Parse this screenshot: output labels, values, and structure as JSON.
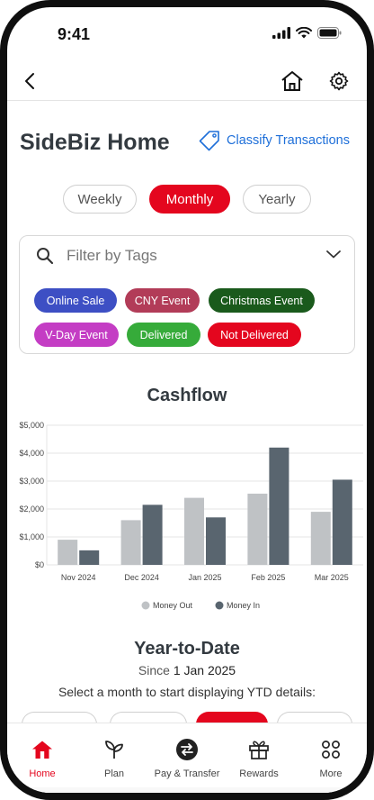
{
  "status_bar": {
    "time": "9:41"
  },
  "header": {
    "title": "SideBiz Home",
    "classify_label": "Classify Transactions"
  },
  "period_toggle": {
    "options": [
      "Weekly",
      "Monthly",
      "Yearly"
    ],
    "selected": "Monthly"
  },
  "filter": {
    "placeholder": "Filter by Tags",
    "tags": [
      {
        "label": "Online Sale",
        "color": "#3d4fc4"
      },
      {
        "label": "CNY Event",
        "color": "#b23c58"
      },
      {
        "label": "Christmas Event",
        "color": "#1a5a1c"
      },
      {
        "label": "V-Day Event",
        "color": "#c43dc4"
      },
      {
        "label": "Delivered",
        "color": "#36ab3a"
      },
      {
        "label": "Not Delivered",
        "color": "#e4061e"
      }
    ]
  },
  "chart_title": "Cashflow",
  "chart_data": {
    "type": "bar",
    "categories": [
      "Nov 2024",
      "Dec 2024",
      "Jan 2025",
      "Feb 2025",
      "Mar 2025"
    ],
    "series": [
      {
        "name": "Money Out",
        "color": "#bfc2c5",
        "values": [
          900,
          1600,
          2400,
          2550,
          1900
        ]
      },
      {
        "name": "Money In",
        "color": "#59656f",
        "values": [
          520,
          2150,
          1700,
          4200,
          3050
        ]
      }
    ],
    "y_ticks": [
      "$0",
      "$1,000",
      "$2,000",
      "$3,000",
      "$4,000",
      "$5,000"
    ],
    "ylim": [
      0,
      5000
    ],
    "grid": true,
    "legend_position": "bottom-center"
  },
  "ytd": {
    "title": "Year-to-Date",
    "since_prefix": "Since",
    "since_date": "1 Jan 2025",
    "instruction": "Select a month to start displaying YTD details:"
  },
  "bottom_nav": {
    "items": [
      {
        "label": "Home",
        "icon": "home-icon",
        "active": true
      },
      {
        "label": "Plan",
        "icon": "plant-icon",
        "active": false
      },
      {
        "label": "Pay & Transfer",
        "icon": "transfer-icon",
        "active": false
      },
      {
        "label": "Rewards",
        "icon": "gift-icon",
        "active": false
      },
      {
        "label": "More",
        "icon": "more-grid-icon",
        "active": false
      }
    ]
  },
  "colors": {
    "accent": "#e4061e",
    "link": "#1e6fd9"
  }
}
